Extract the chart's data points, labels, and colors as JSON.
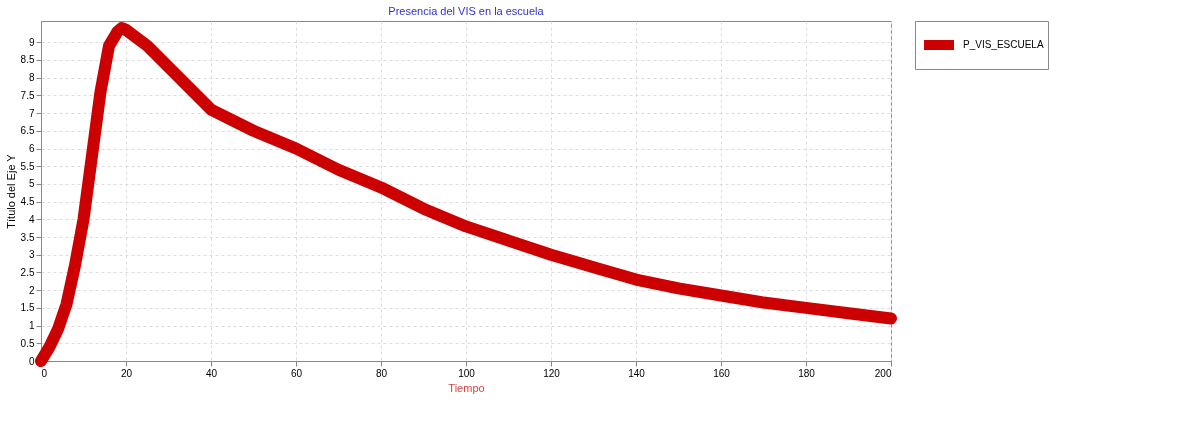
{
  "chart_data": {
    "type": "line",
    "title": "Presencia del VIS en la escuela",
    "xlabel": "Tiempo",
    "ylabel": "Título del Eje Y",
    "x": [
      0,
      2,
      4,
      6,
      8,
      10,
      12,
      14,
      16,
      18,
      19,
      20,
      25,
      30,
      40,
      50,
      60,
      70,
      80,
      90,
      100,
      110,
      120,
      130,
      140,
      150,
      160,
      170,
      180,
      190,
      200
    ],
    "series": [
      {
        "name": "P_VIS_ESCUELA",
        "color": "#cc0000",
        "values": [
          0,
          0.4,
          0.9,
          1.6,
          2.7,
          4.0,
          5.8,
          7.6,
          8.9,
          9.3,
          9.4,
          9.35,
          8.9,
          8.3,
          7.1,
          6.5,
          6.0,
          5.4,
          4.9,
          4.3,
          3.8,
          3.4,
          3.0,
          2.65,
          2.3,
          2.05,
          1.85,
          1.65,
          1.5,
          1.35,
          1.2
        ]
      }
    ],
    "xlim": [
      0,
      200
    ],
    "xticks": [
      0,
      20,
      40,
      60,
      80,
      100,
      120,
      140,
      160,
      180,
      200
    ],
    "ylim": [
      0,
      9.6
    ],
    "yticks": [
      0,
      0.5,
      1,
      1.5,
      2,
      2.5,
      3,
      3.5,
      4,
      4.5,
      5,
      5.5,
      6,
      6.5,
      7,
      7.5,
      8,
      8.5,
      9
    ],
    "grid": true,
    "legend": "top right",
    "line_style": "solid"
  }
}
